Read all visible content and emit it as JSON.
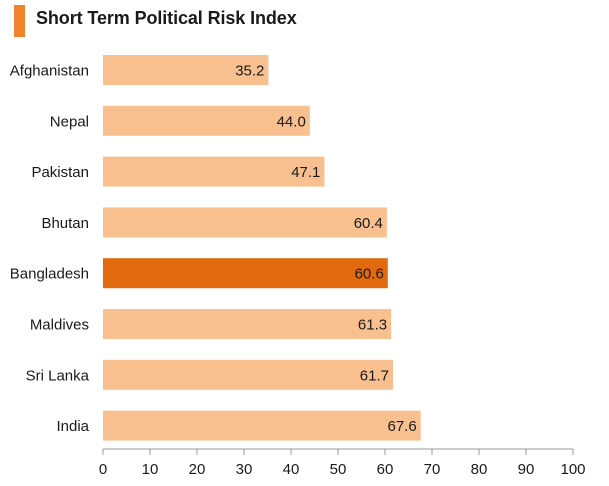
{
  "title": "Short Term Political Risk Index",
  "colors": {
    "accent": "#f0822c",
    "bar": "#f9c08f",
    "highlight": "#e26a0e",
    "axis": "#999999",
    "text": "#1a1a1a"
  },
  "chart_data": {
    "type": "bar",
    "orientation": "horizontal",
    "title": "Short Term Political Risk Index",
    "xlabel": "",
    "ylabel": "",
    "xlim": [
      0,
      100
    ],
    "x_ticks": [
      0,
      10,
      20,
      30,
      40,
      50,
      60,
      70,
      80,
      90,
      100
    ],
    "grid": false,
    "highlighted_category": "Bangladesh",
    "categories": [
      "Afghanistan",
      "Nepal",
      "Pakistan",
      "Bhutan",
      "Bangladesh",
      "Maldives",
      "Sri Lanka",
      "India"
    ],
    "values": [
      35.2,
      44.0,
      47.1,
      60.4,
      60.6,
      61.3,
      61.7,
      67.6
    ],
    "value_labels": [
      "35.2",
      "44.0",
      "47.1",
      "60.4",
      "60.6",
      "61.3",
      "61.7",
      "67.6"
    ]
  }
}
